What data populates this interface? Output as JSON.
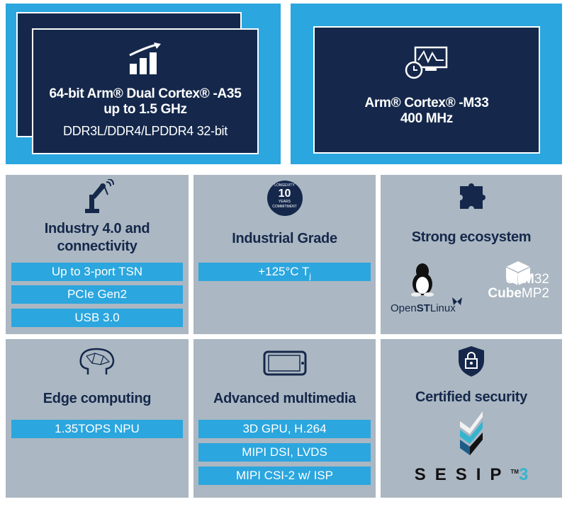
{
  "top_left": {
    "line1": "64-bit Arm® Dual Cortex® -A35",
    "line2": "up to 1.5 GHz",
    "line3": "DDR3L/DDR4/LPDDR4 32-bit",
    "icon": "bar-chart-growth-icon"
  },
  "top_right": {
    "line1": "Arm® Cortex® -M33",
    "line2": "400 MHz",
    "icon": "monitor-clock-icon"
  },
  "tiles": [
    {
      "title": "Industry 4.0 and connectivity",
      "icon": "robot-arm-icon",
      "items": [
        "Up to 3-port TSN",
        "PCIe Gen2",
        "USB 3.0"
      ]
    },
    {
      "title": "Industrial Grade",
      "icon": "longevity-badge-icon",
      "badge": {
        "top": "LONGEVITY",
        "num": "10",
        "unit": "YEARS",
        "bottom": "COMMITMENT"
      },
      "items": [
        "+125°C T",
        "j"
      ]
    },
    {
      "title": "Strong ecosystem",
      "icon": "puzzle-icon",
      "logos": {
        "openstlinux": [
          "Open",
          "ST",
          "Linux"
        ],
        "cube": [
          "STM",
          "32",
          "Cube",
          "MP2"
        ]
      }
    },
    {
      "title": "Edge computing",
      "icon": "brain-network-icon",
      "items": [
        "1.35TOPS NPU"
      ]
    },
    {
      "title": "Advanced multimedia",
      "icon": "tablet-icon",
      "items": [
        "3D GPU, H.264",
        "MIPI DSI, LVDS",
        "MIPI CSI-2 w/ ISP"
      ]
    },
    {
      "title": "Certified security",
      "icon": "shield-lock-icon",
      "logo": {
        "text": "SESIP",
        "tm": "TM",
        "level": "3"
      }
    }
  ],
  "colors": {
    "cyan": "#2ba6de",
    "navy": "#15284b",
    "grey": "#abb7c2"
  }
}
